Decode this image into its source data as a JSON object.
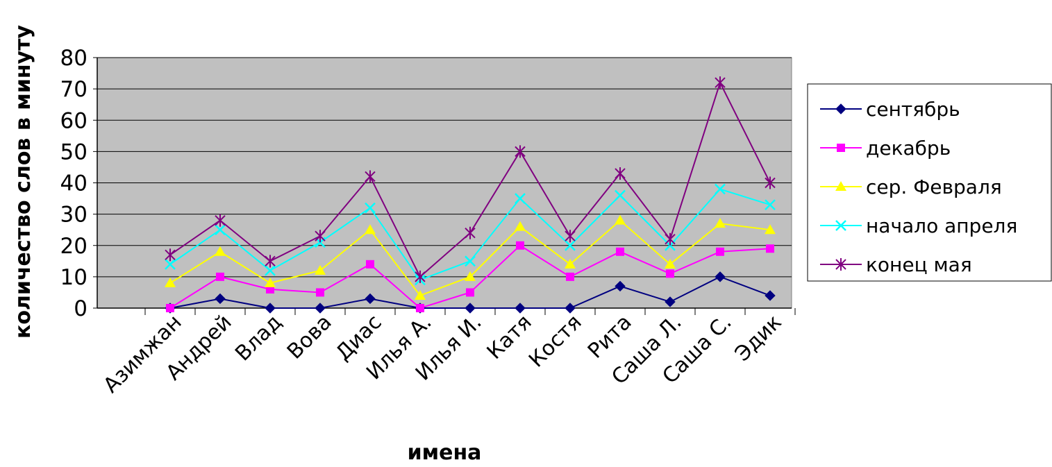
{
  "chart_data": {
    "type": "line",
    "xlabel": "имена",
    "ylabel": "количество слов в минуту",
    "ylim": [
      0,
      80
    ],
    "yticks": [
      0,
      10,
      20,
      30,
      40,
      50,
      60,
      70,
      80
    ],
    "grid": true,
    "legend_position": "right",
    "plot_background": "#c0c0c0",
    "categories": [
      "Азимжан",
      "Андрей",
      "Влад",
      "Вова",
      "Диас",
      "Илья А.",
      "Илья И.",
      "Катя",
      "Костя",
      "Рита",
      "Саша Л.",
      "Саша С.",
      "Эдик"
    ],
    "series": [
      {
        "name": "сентябрь",
        "color": "#000080",
        "marker": "diamond",
        "values": [
          0,
          3,
          0,
          0,
          3,
          0,
          0,
          0,
          0,
          7,
          2,
          10,
          4
        ]
      },
      {
        "name": "декабрь",
        "color": "#ff00ff",
        "marker": "square",
        "values": [
          0,
          10,
          6,
          5,
          14,
          0,
          5,
          20,
          10,
          18,
          11,
          18,
          19
        ]
      },
      {
        "name": "сер. Февраля",
        "color": "#ffff00",
        "marker": "triangle",
        "values": [
          8,
          18,
          8,
          12,
          25,
          4,
          10,
          26,
          14,
          28,
          14,
          27,
          25
        ]
      },
      {
        "name": "начало апреля",
        "color": "#00ffff",
        "marker": "x",
        "values": [
          14,
          25,
          12,
          21,
          32,
          9,
          15,
          35,
          20,
          36,
          20,
          38,
          33
        ]
      },
      {
        "name": "конец мая",
        "color": "#800080",
        "marker": "star",
        "values": [
          17,
          28,
          15,
          23,
          42,
          10,
          24,
          50,
          23,
          43,
          22,
          72,
          40
        ]
      }
    ]
  }
}
